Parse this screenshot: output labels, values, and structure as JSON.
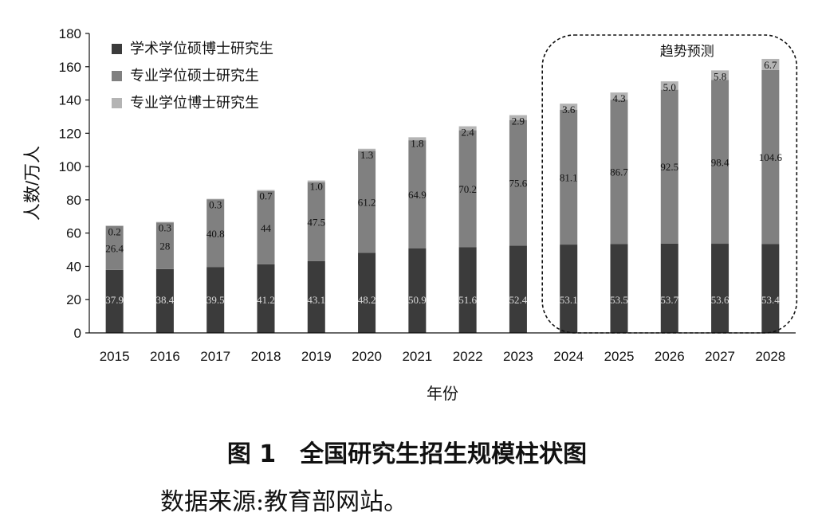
{
  "chart_data": {
    "type": "bar",
    "stacked": true,
    "categories": [
      "2015",
      "2016",
      "2017",
      "2018",
      "2019",
      "2020",
      "2021",
      "2022",
      "2023",
      "2024",
      "2025",
      "2026",
      "2027",
      "2028"
    ],
    "series": [
      {
        "name": "学术学位硕博士研究生",
        "color": "#3b3b3b",
        "label_color": "#d8d8d8",
        "values": [
          37.9,
          38.4,
          39.5,
          41.2,
          43.1,
          48.2,
          50.9,
          51.6,
          52.4,
          53.1,
          53.5,
          53.7,
          53.6,
          53.4
        ],
        "labels": [
          "37.9",
          "38.4",
          "39.5",
          "41.2",
          "43.1",
          "48.2",
          "50.9",
          "51.6",
          "52.4",
          "53.1",
          "53.5",
          "53.7",
          "53.6",
          "53.4"
        ]
      },
      {
        "name": "专业学位硕士研究生",
        "color": "#808080",
        "label_color": "#111111",
        "values": [
          26.4,
          28,
          40.8,
          44,
          47.5,
          61.2,
          64.9,
          70.2,
          75.6,
          81.1,
          86.7,
          92.5,
          98.4,
          104.6
        ],
        "labels": [
          "26.4",
          "28",
          "40.8",
          "44",
          "47.5",
          "61.2",
          "64.9",
          "70.2",
          "75.6",
          "81.1",
          "86.7",
          "92.5",
          "98.4",
          "104.6"
        ]
      },
      {
        "name": "专业学位博士研究生",
        "color": "#b4b4b4",
        "label_color": "#111111",
        "values": [
          0.2,
          0.3,
          0.3,
          0.7,
          1.0,
          1.3,
          1.8,
          2.4,
          2.9,
          3.6,
          4.3,
          5.0,
          5.8,
          6.7
        ],
        "labels": [
          "0.2",
          "0.3",
          "0.3",
          "0.7",
          "1.0",
          "1.3",
          "1.8",
          "2.4",
          "2.9",
          "3.6",
          "4.3",
          "5.0",
          "5.8",
          "6.7"
        ]
      }
    ],
    "xlabel": "年份",
    "ylabel": "人数/万人",
    "ylim": [
      0,
      180
    ],
    "yticks": [
      0,
      20,
      40,
      60,
      80,
      100,
      120,
      140,
      160,
      180
    ],
    "grid": false,
    "legend_position": "top-left",
    "annotation": {
      "text": "趋势预测",
      "start": "2024",
      "end": "2028"
    }
  },
  "caption": {
    "title": "图 1　全国研究生招生规模柱状图",
    "source": "数据来源:教育部网站。"
  }
}
